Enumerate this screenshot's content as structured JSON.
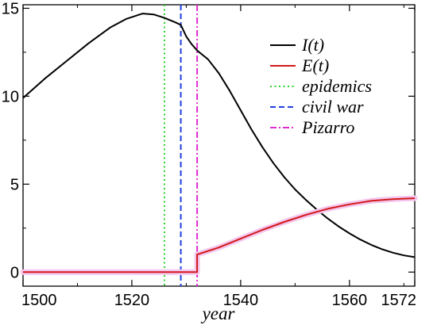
{
  "chart_data": {
    "type": "line",
    "title": "",
    "xlabel": "year",
    "ylabel": "",
    "xlim": [
      1500,
      1572
    ],
    "ylim": [
      -0.8,
      15.2
    ],
    "x_ticks": [
      1500,
      1520,
      1540,
      1560,
      1572
    ],
    "x_tick_labels": [
      "1500",
      "1520",
      "1540",
      "1560",
      "1572"
    ],
    "y_ticks": [
      0,
      5,
      10,
      15
    ],
    "y_tick_labels": [
      "0",
      "5",
      "10",
      "15"
    ],
    "grid": false,
    "legend_position": "top-right",
    "series": [
      {
        "name": "I(t)",
        "color": "#000000",
        "style": "solid",
        "x": [
          1500,
          1504,
          1508,
          1512,
          1516,
          1519,
          1522,
          1524,
          1526,
          1528,
          1529,
          1530,
          1531,
          1532,
          1534,
          1536,
          1538,
          1540,
          1542,
          1544,
          1546,
          1548,
          1550,
          1552,
          1554,
          1556,
          1558,
          1560,
          1562,
          1564,
          1566,
          1568,
          1570,
          1572
        ],
        "y": [
          9.9,
          11.0,
          12.0,
          13.0,
          13.9,
          14.4,
          14.7,
          14.65,
          14.45,
          14.2,
          14.05,
          13.4,
          12.95,
          12.6,
          12.1,
          11.3,
          10.3,
          9.2,
          8.1,
          7.1,
          6.2,
          5.4,
          4.7,
          4.1,
          3.55,
          3.05,
          2.6,
          2.2,
          1.85,
          1.55,
          1.3,
          1.1,
          0.95,
          0.85
        ]
      },
      {
        "name": "E(t)",
        "color": "#d11a1a",
        "style": "solid",
        "x": [
          1500,
          1532,
          1532,
          1536,
          1540,
          1544,
          1548,
          1552,
          1556,
          1560,
          1564,
          1568,
          1572
        ],
        "y": [
          0,
          0,
          1.0,
          1.4,
          1.9,
          2.4,
          2.85,
          3.25,
          3.6,
          3.85,
          4.05,
          4.15,
          4.2
        ]
      }
    ],
    "reference_lines": [
      {
        "name": "epidemics",
        "x": 1526,
        "color": "#2bd42b",
        "style": "dotted"
      },
      {
        "name": "civil war",
        "x": 1529,
        "color": "#1f3fdc",
        "style": "dashed"
      },
      {
        "name": "Pizarro",
        "x": 1532,
        "color": "#e02ad0",
        "style": "dashdot"
      }
    ],
    "legend": {
      "entries": [
        "I(t)",
        "E(t)",
        "epidemics",
        "civil war",
        "Pizarro"
      ]
    }
  }
}
